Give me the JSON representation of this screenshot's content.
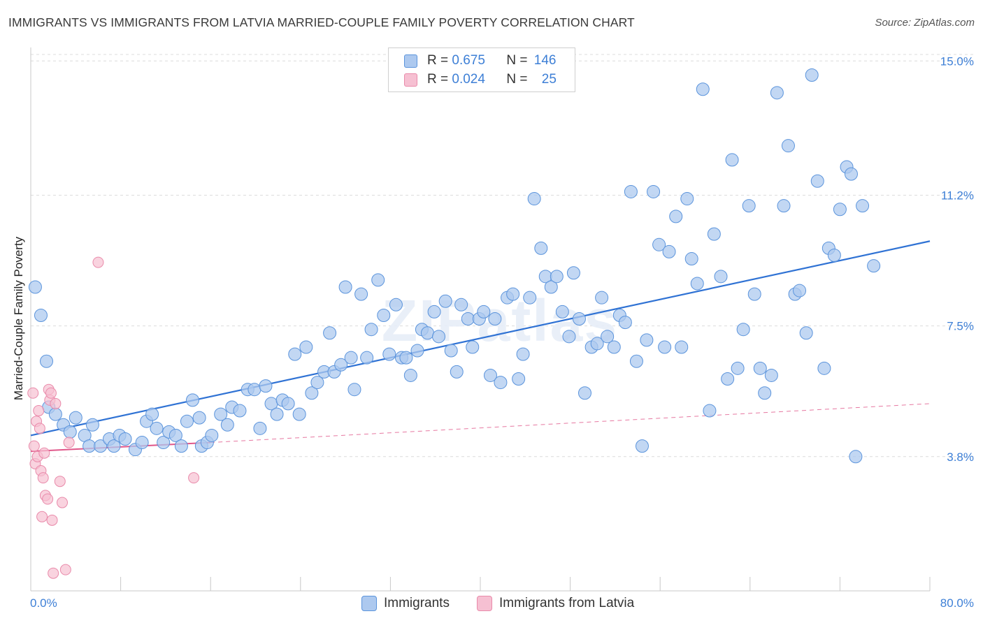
{
  "title": "IMMIGRANTS VS IMMIGRANTS FROM LATVIA MARRIED-COUPLE FAMILY POVERTY CORRELATION CHART",
  "source": "Source: ZipAtlas.com",
  "watermark": "ZIPatlas",
  "legend": {
    "rows": [
      {
        "r_label": "R =",
        "r_value": "0.675",
        "n_label": "N =",
        "n_value": "146"
      },
      {
        "r_label": "R =",
        "r_value": "0.024",
        "n_label": "N =",
        "n_value": "25"
      }
    ]
  },
  "bottom_legend": [
    "Immigrants",
    "Immigrants from Latvia"
  ],
  "colors": {
    "blue_fill": "#adc9ef",
    "blue_stroke": "#5b94dc",
    "blue_line": "#2f72d4",
    "pink_fill": "#f6c0d2",
    "pink_stroke": "#e98aaa",
    "pink_line": "#e0578a",
    "tick_label": "#3d7fd6",
    "grid": "#dcdcdc"
  },
  "chart_data": {
    "type": "scatter",
    "title": "IMMIGRANTS VS IMMIGRANTS FROM LATVIA MARRIED-COUPLE FAMILY POVERTY CORRELATION CHART",
    "xlabel": "",
    "ylabel": "Married-Couple Family Poverty",
    "xlim": [
      0,
      80
    ],
    "ylim": [
      0,
      15.5
    ],
    "x_tick_labels": [
      "0.0%",
      "80.0%"
    ],
    "y_ticks": [
      3.8,
      7.5,
      11.2,
      15.0
    ],
    "y_tick_labels": [
      "3.8%",
      "7.5%",
      "11.2%",
      "15.0%"
    ],
    "grid": true,
    "legend_position": "top-center",
    "series": [
      {
        "name": "Immigrants",
        "r": 0.675,
        "n": 146,
        "trend": {
          "x": [
            0,
            80
          ],
          "y": [
            4.4,
            9.9
          ],
          "dashed_extension": false
        },
        "points": [
          [
            0.4,
            8.6
          ],
          [
            0.9,
            7.8
          ],
          [
            1.4,
            6.5
          ],
          [
            1.6,
            5.2
          ],
          [
            2.2,
            5.0
          ],
          [
            2.9,
            4.7
          ],
          [
            3.5,
            4.5
          ],
          [
            4.0,
            4.9
          ],
          [
            4.8,
            4.4
          ],
          [
            5.2,
            4.1
          ],
          [
            5.5,
            4.7
          ],
          [
            6.2,
            4.1
          ],
          [
            7.0,
            4.3
          ],
          [
            7.4,
            4.1
          ],
          [
            7.9,
            4.4
          ],
          [
            8.4,
            4.3
          ],
          [
            9.3,
            4.0
          ],
          [
            9.9,
            4.2
          ],
          [
            10.3,
            4.8
          ],
          [
            10.8,
            5.0
          ],
          [
            11.2,
            4.6
          ],
          [
            11.8,
            4.2
          ],
          [
            12.3,
            4.5
          ],
          [
            12.9,
            4.4
          ],
          [
            13.4,
            4.1
          ],
          [
            13.9,
            4.8
          ],
          [
            14.4,
            5.4
          ],
          [
            15.0,
            4.9
          ],
          [
            15.2,
            4.1
          ],
          [
            15.7,
            4.2
          ],
          [
            16.1,
            4.4
          ],
          [
            16.9,
            5.0
          ],
          [
            17.5,
            4.7
          ],
          [
            17.9,
            5.2
          ],
          [
            18.6,
            5.1
          ],
          [
            19.3,
            5.7
          ],
          [
            19.9,
            5.7
          ],
          [
            20.4,
            4.6
          ],
          [
            20.9,
            5.8
          ],
          [
            21.4,
            5.3
          ],
          [
            21.9,
            5.0
          ],
          [
            22.4,
            5.4
          ],
          [
            22.9,
            5.3
          ],
          [
            23.5,
            6.7
          ],
          [
            23.9,
            5.0
          ],
          [
            24.5,
            6.9
          ],
          [
            25.0,
            5.6
          ],
          [
            25.5,
            5.9
          ],
          [
            26.1,
            6.2
          ],
          [
            26.6,
            7.3
          ],
          [
            27.0,
            6.2
          ],
          [
            27.6,
            6.4
          ],
          [
            28.0,
            8.6
          ],
          [
            28.5,
            6.6
          ],
          [
            28.8,
            5.7
          ],
          [
            29.4,
            8.4
          ],
          [
            29.9,
            6.6
          ],
          [
            30.3,
            7.4
          ],
          [
            30.9,
            8.8
          ],
          [
            31.4,
            7.8
          ],
          [
            31.9,
            6.7
          ],
          [
            32.5,
            8.1
          ],
          [
            33.0,
            6.6
          ],
          [
            33.4,
            6.6
          ],
          [
            33.8,
            6.1
          ],
          [
            34.4,
            6.8
          ],
          [
            34.8,
            7.4
          ],
          [
            35.3,
            7.3
          ],
          [
            35.9,
            7.9
          ],
          [
            36.3,
            7.2
          ],
          [
            36.9,
            8.2
          ],
          [
            37.4,
            6.8
          ],
          [
            37.9,
            6.2
          ],
          [
            38.3,
            8.1
          ],
          [
            38.9,
            7.7
          ],
          [
            39.3,
            6.9
          ],
          [
            39.9,
            7.7
          ],
          [
            40.3,
            7.9
          ],
          [
            40.9,
            6.1
          ],
          [
            41.3,
            7.7
          ],
          [
            41.8,
            5.9
          ],
          [
            42.4,
            8.3
          ],
          [
            42.9,
            8.4
          ],
          [
            43.4,
            6.0
          ],
          [
            43.8,
            6.7
          ],
          [
            44.4,
            8.3
          ],
          [
            44.8,
            11.1
          ],
          [
            45.4,
            9.7
          ],
          [
            45.8,
            8.9
          ],
          [
            46.3,
            8.6
          ],
          [
            46.8,
            8.9
          ],
          [
            47.3,
            7.9
          ],
          [
            47.9,
            7.2
          ],
          [
            48.3,
            9.0
          ],
          [
            48.8,
            7.7
          ],
          [
            49.3,
            5.6
          ],
          [
            49.9,
            6.9
          ],
          [
            50.4,
            7.0
          ],
          [
            50.8,
            8.3
          ],
          [
            51.3,
            7.2
          ],
          [
            51.9,
            6.9
          ],
          [
            52.4,
            7.8
          ],
          [
            52.9,
            7.6
          ],
          [
            53.4,
            11.3
          ],
          [
            53.9,
            6.5
          ],
          [
            54.4,
            4.1
          ],
          [
            54.8,
            7.1
          ],
          [
            55.4,
            11.3
          ],
          [
            55.9,
            9.8
          ],
          [
            56.4,
            6.9
          ],
          [
            56.8,
            9.6
          ],
          [
            57.4,
            10.6
          ],
          [
            57.9,
            6.9
          ],
          [
            58.4,
            11.1
          ],
          [
            58.8,
            9.4
          ],
          [
            59.3,
            8.7
          ],
          [
            59.8,
            14.2
          ],
          [
            60.4,
            5.1
          ],
          [
            60.8,
            10.1
          ],
          [
            61.4,
            8.9
          ],
          [
            62.0,
            6.0
          ],
          [
            62.4,
            12.2
          ],
          [
            62.9,
            6.3
          ],
          [
            63.4,
            7.4
          ],
          [
            63.9,
            10.9
          ],
          [
            64.4,
            8.4
          ],
          [
            64.9,
            6.3
          ],
          [
            65.3,
            5.6
          ],
          [
            65.9,
            6.1
          ],
          [
            66.4,
            14.1
          ],
          [
            67.0,
            10.9
          ],
          [
            67.4,
            12.6
          ],
          [
            68.0,
            8.4
          ],
          [
            68.4,
            8.5
          ],
          [
            69.0,
            7.3
          ],
          [
            69.5,
            14.6
          ],
          [
            70.0,
            11.6
          ],
          [
            70.6,
            6.3
          ],
          [
            71.0,
            9.7
          ],
          [
            71.5,
            9.5
          ],
          [
            72.0,
            10.8
          ],
          [
            72.6,
            12.0
          ],
          [
            73.0,
            11.8
          ],
          [
            73.4,
            3.8
          ],
          [
            74.0,
            10.9
          ],
          [
            75.0,
            9.2
          ]
        ]
      },
      {
        "name": "Immigrants from Latvia",
        "r": 0.024,
        "n": 25,
        "trend": {
          "x": [
            0,
            16
          ],
          "y": [
            3.95,
            4.2
          ],
          "dashed_extension": {
            "x": [
              16,
              80
            ],
            "y": [
              4.2,
              5.3
            ]
          }
        },
        "points": [
          [
            0.2,
            5.6
          ],
          [
            0.3,
            4.1
          ],
          [
            0.4,
            3.6
          ],
          [
            0.5,
            4.8
          ],
          [
            0.6,
            3.8
          ],
          [
            0.7,
            5.1
          ],
          [
            0.8,
            4.6
          ],
          [
            0.9,
            3.4
          ],
          [
            1.0,
            2.1
          ],
          [
            1.1,
            3.2
          ],
          [
            1.2,
            3.9
          ],
          [
            1.3,
            2.7
          ],
          [
            1.5,
            2.6
          ],
          [
            1.6,
            5.7
          ],
          [
            1.7,
            5.4
          ],
          [
            1.8,
            5.6
          ],
          [
            1.9,
            2.0
          ],
          [
            2.0,
            0.5
          ],
          [
            2.2,
            5.3
          ],
          [
            2.6,
            3.1
          ],
          [
            2.8,
            2.5
          ],
          [
            3.1,
            0.6
          ],
          [
            3.4,
            4.2
          ],
          [
            6.0,
            9.3
          ],
          [
            14.5,
            3.2
          ]
        ]
      }
    ]
  }
}
